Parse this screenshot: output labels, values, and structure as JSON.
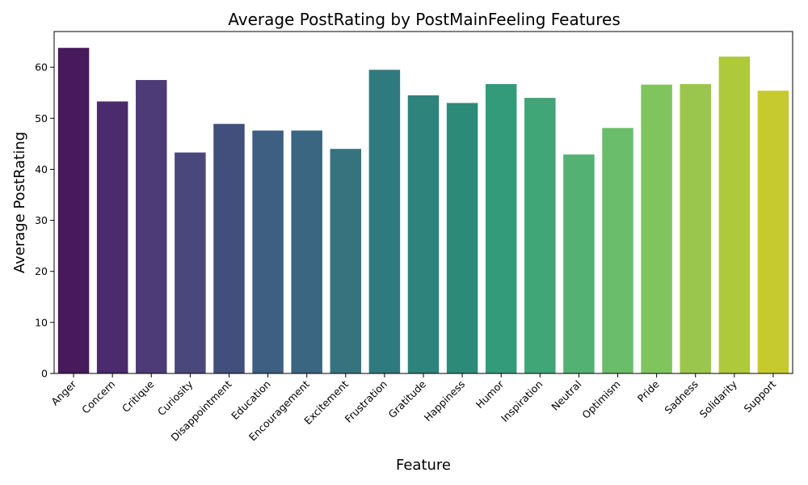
{
  "chart_data": {
    "type": "bar",
    "title": "Average PostRating by PostMainFeeling Features",
    "xlabel": "Feature",
    "ylabel": "Average PostRating",
    "ylim": [
      0,
      67
    ],
    "yticks": [
      0,
      10,
      20,
      30,
      40,
      50,
      60
    ],
    "grid": false,
    "categories": [
      "Anger",
      "Concern",
      "Critique",
      "Curiosity",
      "Disappointment",
      "Education",
      "Encouragement",
      "Excitement",
      "Frustration",
      "Gratitude",
      "Happiness",
      "Humor",
      "Inspiration",
      "Neutral",
      "Optimism",
      "Pride",
      "Sadness",
      "Solidarity",
      "Support"
    ],
    "values": [
      63.8,
      53.3,
      57.5,
      43.3,
      48.9,
      47.6,
      47.6,
      44.0,
      59.5,
      54.5,
      53.0,
      56.7,
      54.0,
      42.9,
      48.1,
      56.6,
      56.7,
      62.1,
      55.4
    ],
    "colors": [
      "#471a5c",
      "#4b2a6d",
      "#4c3b77",
      "#4a477b",
      "#424f7d",
      "#3e5e82",
      "#3b6681",
      "#36737f",
      "#2f7a7e",
      "#2e837b",
      "#2b8b78",
      "#339a7a",
      "#40a577",
      "#52b173",
      "#6abd6a",
      "#80c45e",
      "#9bc64d",
      "#aec93b",
      "#c6ca2f"
    ]
  }
}
